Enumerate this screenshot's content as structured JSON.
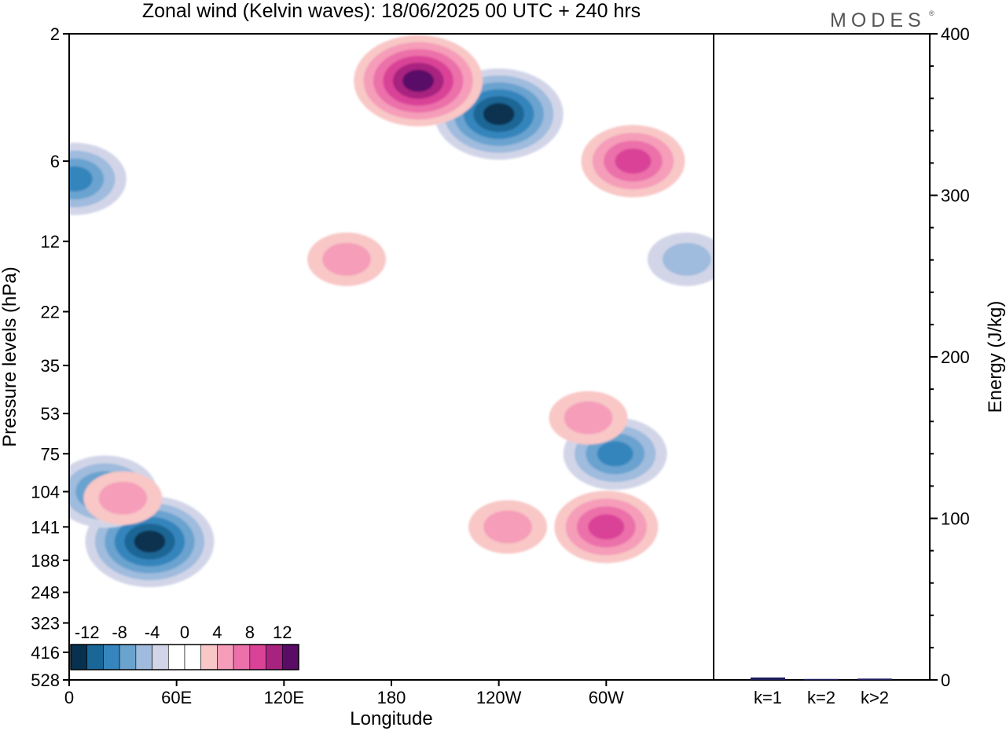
{
  "title": "Zonal wind (Kelvin waves):  18/06/2025  00 UTC  + 240 hrs",
  "logo": "MODES",
  "logo_mark": "®",
  "chart_data": [
    {
      "type": "heatmap",
      "title": "Zonal wind (Kelvin waves):  18/06/2025  00 UTC  + 240 hrs",
      "xlabel": "Longitude",
      "ylabel": "Pressure levels (hPa)",
      "x_ticks": [
        "0",
        "60E",
        "120E",
        "180",
        "120W",
        "60W"
      ],
      "x_tick_values": [
        0,
        60,
        120,
        180,
        240,
        300
      ],
      "xlim": [
        0,
        360
      ],
      "y_ticks": [
        "2",
        "6",
        "12",
        "22",
        "35",
        "53",
        "75",
        "104",
        "141",
        "188",
        "248",
        "323",
        "416",
        "528"
      ],
      "y_scale": "log (pressure levels, top = 2 hPa)",
      "colorbar": {
        "labels": [
          "-12",
          "-8",
          "-4",
          "0",
          "4",
          "8",
          "12"
        ],
        "colors": [
          "#08304f",
          "#1a6696",
          "#3685bd",
          "#6ba3cf",
          "#9fbbdd",
          "#d2d5e8",
          "#ffffff",
          "#ffffff",
          "#f8c7c6",
          "#f59db9",
          "#ec70a9",
          "#d94297",
          "#a8237f",
          "#5a0c67"
        ]
      },
      "features": [
        {
          "sign": "negative",
          "lon": 45,
          "level_hPa": 160,
          "peak": -12
        },
        {
          "sign": "negative",
          "lon": 20,
          "level_hPa": 104,
          "peak": -8
        },
        {
          "sign": "negative",
          "lon": 3,
          "level_hPa": 7,
          "peak": -8
        },
        {
          "sign": "negative",
          "lon": 240,
          "level_hPa": 4,
          "peak": -12
        },
        {
          "sign": "negative",
          "lon": 305,
          "level_hPa": 75,
          "peak": -8
        },
        {
          "sign": "negative",
          "lon": 345,
          "level_hPa": 14,
          "peak": -4
        },
        {
          "sign": "positive",
          "lon": 195,
          "level_hPa": 3,
          "peak": 16
        },
        {
          "sign": "positive",
          "lon": 300,
          "level_hPa": 141,
          "peak": 8
        },
        {
          "sign": "positive",
          "lon": 245,
          "level_hPa": 141,
          "peak": 4
        },
        {
          "sign": "positive",
          "lon": 290,
          "level_hPa": 55,
          "peak": 4
        },
        {
          "sign": "positive",
          "lon": 315,
          "level_hPa": 6,
          "peak": 8
        },
        {
          "sign": "positive",
          "lon": 155,
          "level_hPa": 14,
          "peak": 4
        },
        {
          "sign": "positive",
          "lon": 30,
          "level_hPa": 110,
          "peak": 4
        }
      ]
    },
    {
      "type": "bar",
      "ylabel": "Energy (J/kg)",
      "categories": [
        "k=1",
        "k=2",
        "k>2"
      ],
      "values": [
        1.5,
        0.6,
        0.8
      ],
      "ylim": [
        0,
        400
      ],
      "y_ticks": [
        "0",
        "100",
        "200",
        "300",
        "400"
      ],
      "y_tick_values": [
        0,
        100,
        200,
        300,
        400
      ],
      "bar_color": "#1c1c5c"
    }
  ]
}
